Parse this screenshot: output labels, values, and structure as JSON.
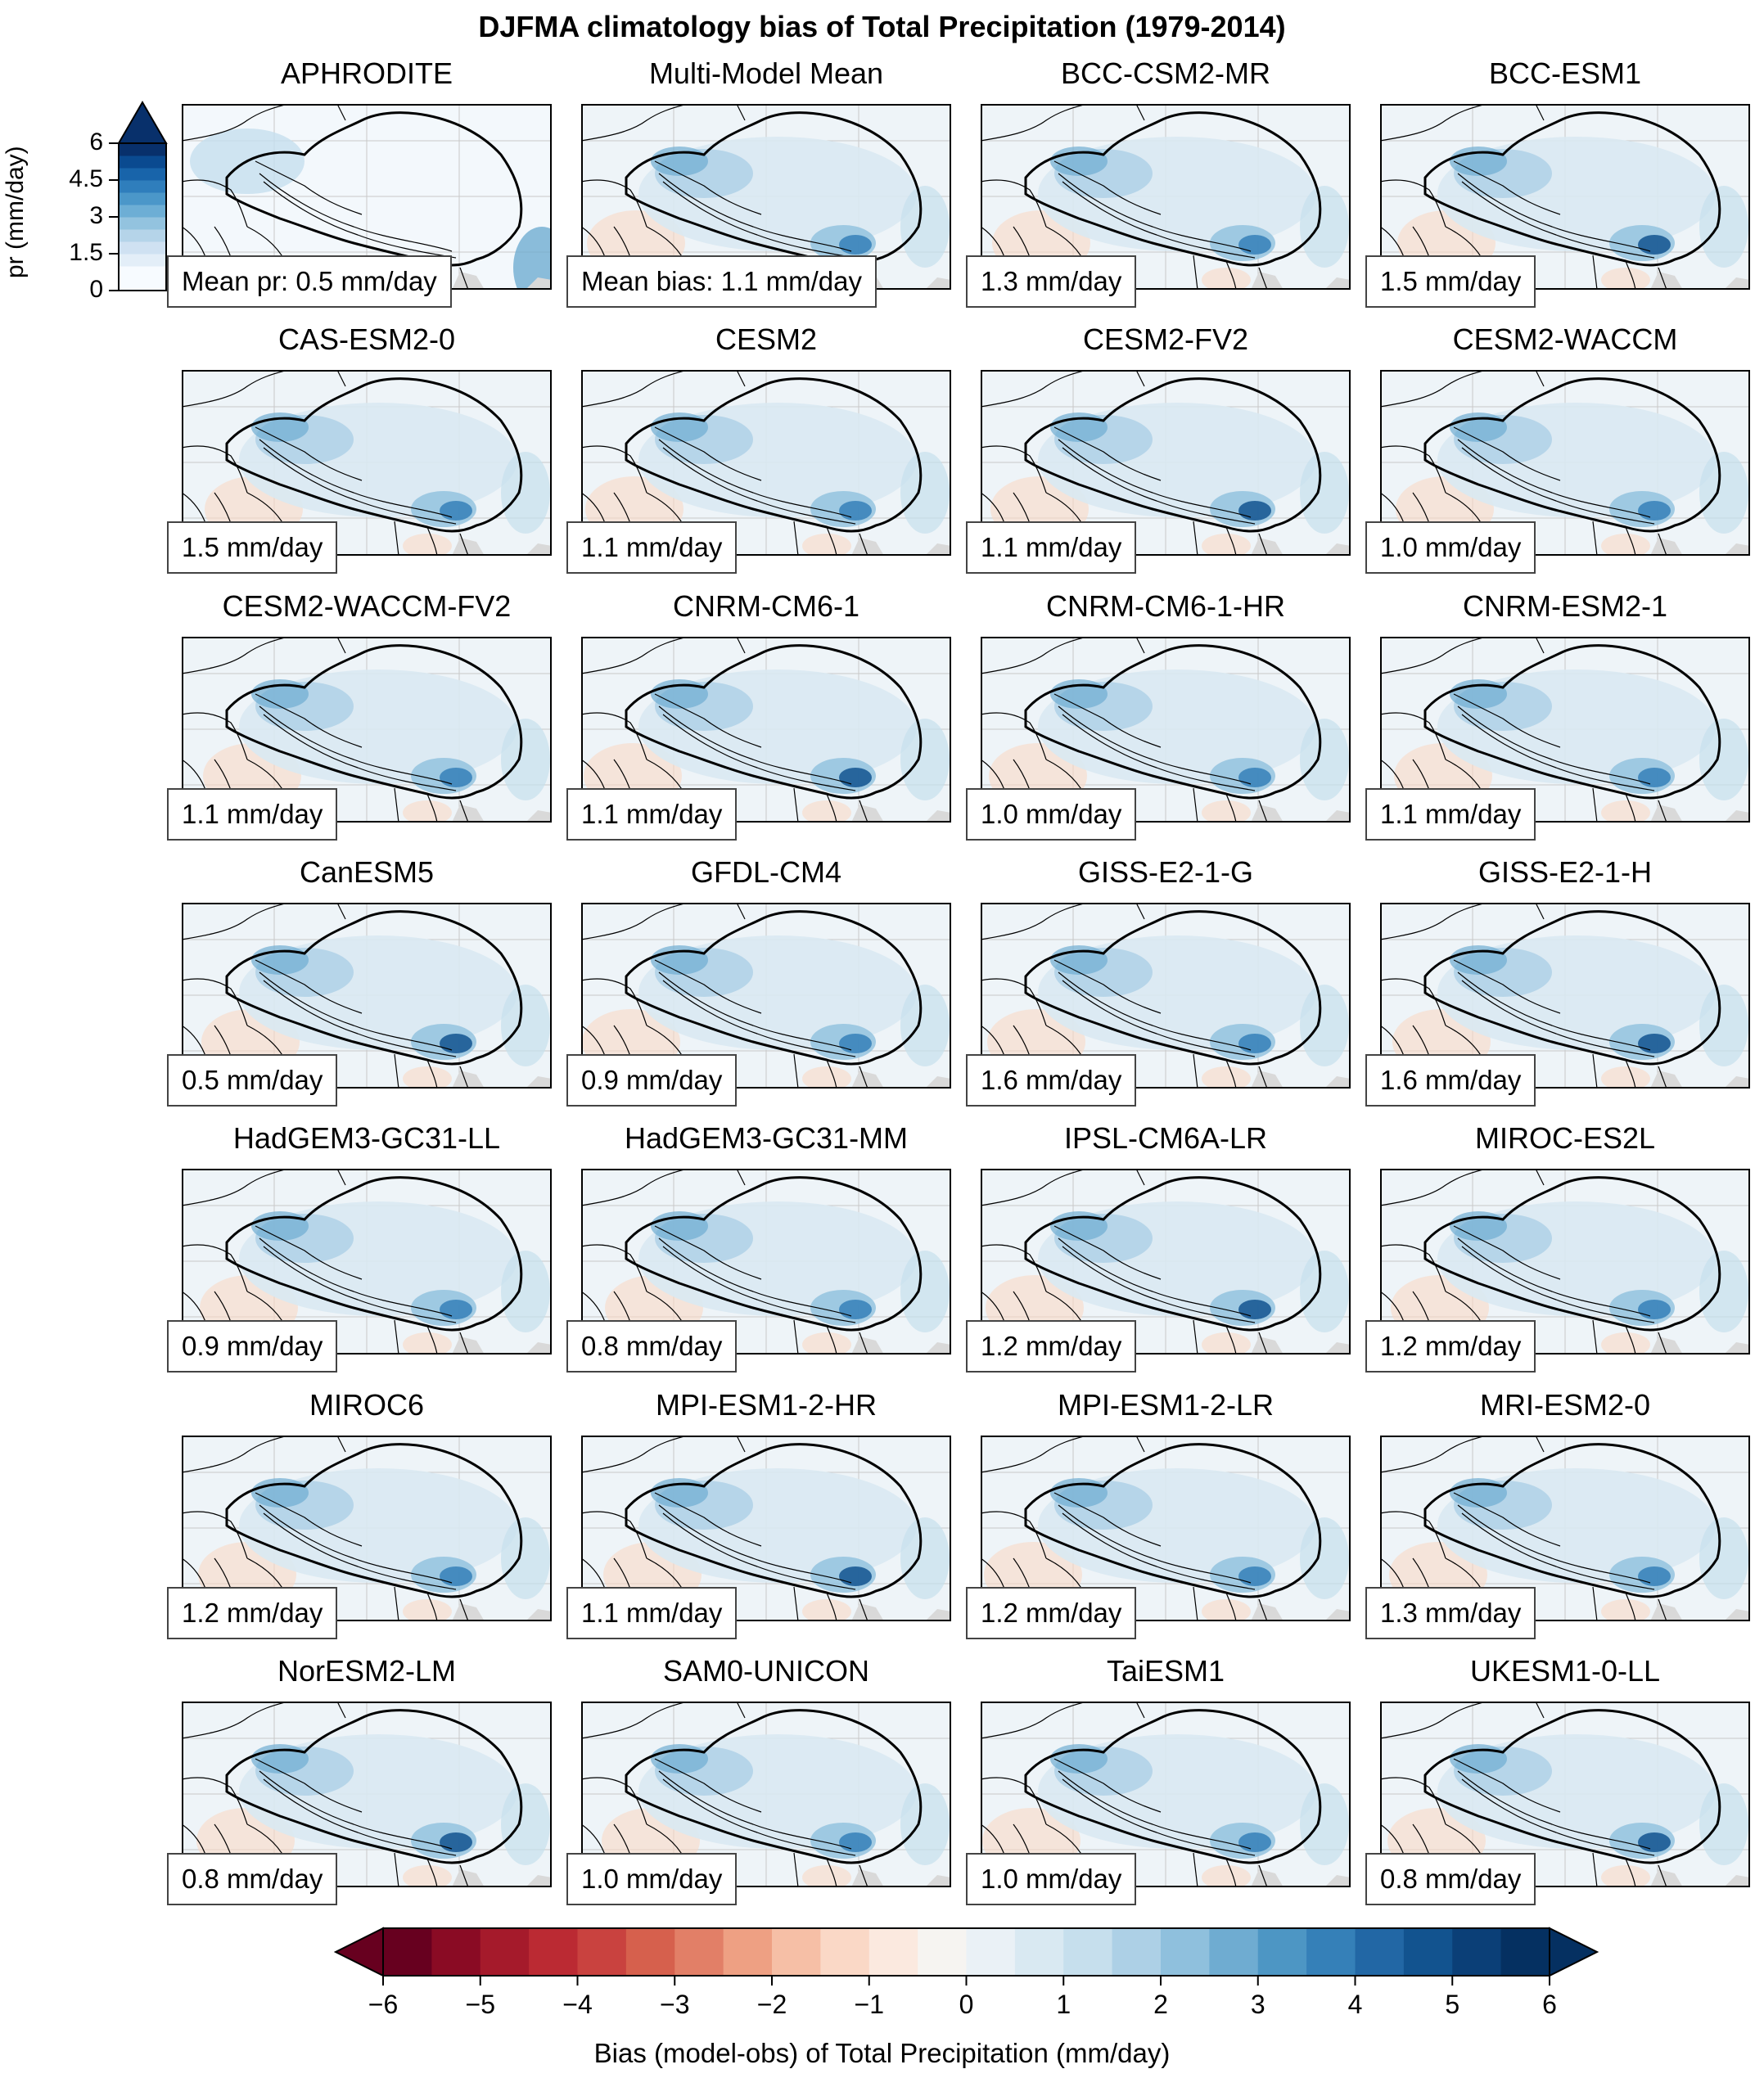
{
  "title": "DJFMA climatology bias of Total Precipitation (1979-2014)",
  "panels": [
    {
      "name": "APHRODITE",
      "stat": "Mean pr: 0.5 mm/day",
      "style": "obs"
    },
    {
      "name": "Multi-Model Mean",
      "stat": "Mean bias: 1.1 mm/day",
      "style": "mmm"
    },
    {
      "name": "BCC-CSM2-MR",
      "stat": "1.3 mm/day"
    },
    {
      "name": "BCC-ESM1",
      "stat": "1.5 mm/day"
    },
    {
      "name": "CAS-ESM2-0",
      "stat": "1.5 mm/day"
    },
    {
      "name": "CESM2",
      "stat": "1.1 mm/day"
    },
    {
      "name": "CESM2-FV2",
      "stat": "1.1 mm/day"
    },
    {
      "name": "CESM2-WACCM",
      "stat": "1.0 mm/day"
    },
    {
      "name": "CESM2-WACCM-FV2",
      "stat": "1.1 mm/day"
    },
    {
      "name": "CNRM-CM6-1",
      "stat": "1.1 mm/day"
    },
    {
      "name": "CNRM-CM6-1-HR",
      "stat": "1.0 mm/day"
    },
    {
      "name": "CNRM-ESM2-1",
      "stat": "1.1 mm/day"
    },
    {
      "name": "CanESM5",
      "stat": "0.5 mm/day"
    },
    {
      "name": "GFDL-CM4",
      "stat": "0.9 mm/day"
    },
    {
      "name": "GISS-E2-1-G",
      "stat": "1.6 mm/day"
    },
    {
      "name": "GISS-E2-1-H",
      "stat": "1.6 mm/day"
    },
    {
      "name": "HadGEM3-GC31-LL",
      "stat": "0.9 mm/day"
    },
    {
      "name": "HadGEM3-GC31-MM",
      "stat": "0.8 mm/day"
    },
    {
      "name": "IPSL-CM6A-LR",
      "stat": "1.2 mm/day"
    },
    {
      "name": "MIROC-ES2L",
      "stat": "1.2 mm/day"
    },
    {
      "name": "MIROC6",
      "stat": "1.2 mm/day"
    },
    {
      "name": "MPI-ESM1-2-HR",
      "stat": "1.1 mm/day"
    },
    {
      "name": "MPI-ESM1-2-LR",
      "stat": "1.2 mm/day"
    },
    {
      "name": "MRI-ESM2-0",
      "stat": "1.3 mm/day"
    },
    {
      "name": "NorESM2-LM",
      "stat": "0.8 mm/day"
    },
    {
      "name": "SAM0-UNICON",
      "stat": "1.0 mm/day"
    },
    {
      "name": "TaiESM1",
      "stat": "1.0 mm/day"
    },
    {
      "name": "UKESM1-0-LL",
      "stat": "0.8 mm/day"
    }
  ],
  "pr_colorbar": {
    "label": "pr (mm/day)",
    "ticks": [
      "0",
      "1.5",
      "3",
      "4.5",
      "6"
    ],
    "extend": "max"
  },
  "bias_colorbar": {
    "label": "Bias (model-obs) of Total Precipitation (mm/day)",
    "ticks": [
      "−6",
      "−5",
      "−4",
      "−3",
      "−2",
      "−1",
      "0",
      "1",
      "2",
      "3",
      "4",
      "5",
      "6"
    ],
    "extend": "both",
    "colors": [
      "#67001f",
      "#8a0b24",
      "#a51a2b",
      "#bb2a33",
      "#c9423f",
      "#d6604d",
      "#e27f67",
      "#eea083",
      "#f6bfa6",
      "#fad8c6",
      "#fbe9df",
      "#f6f4f1",
      "#eaf1f6",
      "#d9e9f2",
      "#c6dfed",
      "#add0e6",
      "#8fc0dd",
      "#6facd1",
      "#4d96c4",
      "#3580b8",
      "#2267a5",
      "#12538f",
      "#0b3f77",
      "#053061"
    ]
  },
  "colors": {
    "land_gray": "#d9d9d9",
    "plateau_outline": "#000000",
    "grid": "#bbbbbb"
  }
}
